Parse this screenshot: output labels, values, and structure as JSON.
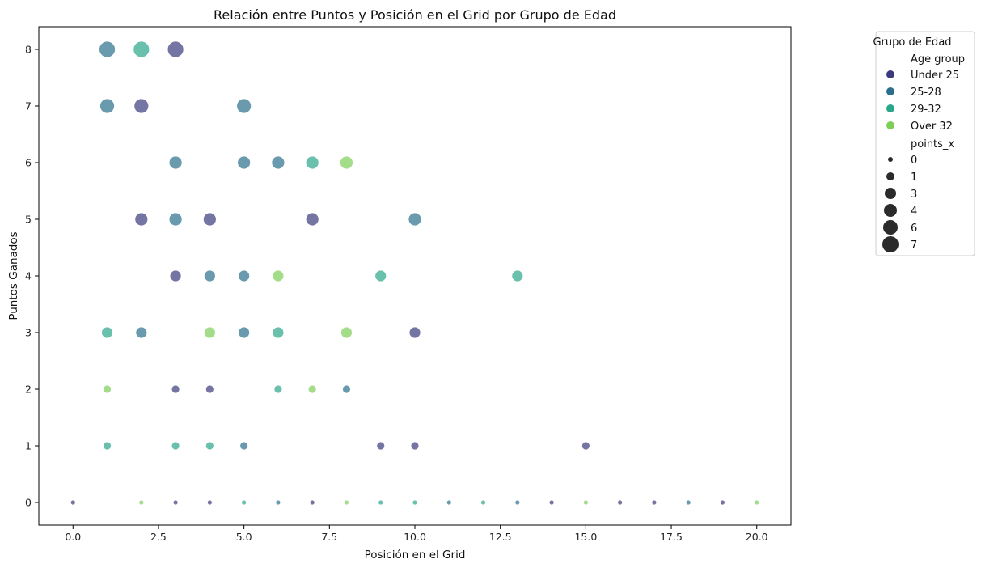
{
  "chart_data": {
    "type": "scatter",
    "title": "Relación entre Puntos y Posición en el Grid por Grupo de Edad",
    "xlabel": "Posición en el Grid",
    "ylabel": "Puntos Ganados",
    "xlim": [
      -1,
      21
    ],
    "ylim": [
      -0.4,
      8.4
    ],
    "x_ticks": [
      0,
      2.5,
      5,
      7.5,
      10,
      12.5,
      15,
      17.5,
      20
    ],
    "x_tick_labels": [
      "0.0",
      "2.5",
      "5.0",
      "7.5",
      "10.0",
      "12.5",
      "15.0",
      "17.5",
      "20.0"
    ],
    "y_ticks": [
      0,
      1,
      2,
      3,
      4,
      5,
      6,
      7,
      8
    ],
    "y_tick_labels": [
      "0",
      "1",
      "2",
      "3",
      "4",
      "5",
      "6",
      "7",
      "8"
    ],
    "grid": false,
    "colors": {
      "Under 25": "#3b3a7e",
      "25-28": "#2a6f8c",
      "29-32": "#2aa78a",
      "Over 32": "#7ccf58"
    },
    "series": [
      {
        "name": "Under 25",
        "points": [
          {
            "x": 2,
            "y": 7,
            "size": 6
          },
          {
            "x": 3,
            "y": 8,
            "size": 7
          },
          {
            "x": 2,
            "y": 5,
            "size": 4
          },
          {
            "x": 4,
            "y": 5,
            "size": 4
          },
          {
            "x": 7,
            "y": 5,
            "size": 4
          },
          {
            "x": 3,
            "y": 4,
            "size": 3
          },
          {
            "x": 10,
            "y": 3,
            "size": 3
          },
          {
            "x": 3,
            "y": 2,
            "size": 1
          },
          {
            "x": 4,
            "y": 2,
            "size": 1
          },
          {
            "x": 9,
            "y": 1,
            "size": 1
          },
          {
            "x": 10,
            "y": 1,
            "size": 1
          },
          {
            "x": 15,
            "y": 1,
            "size": 1
          },
          {
            "x": 0,
            "y": 0,
            "size": 0
          },
          {
            "x": 3,
            "y": 0,
            "size": 0
          },
          {
            "x": 4,
            "y": 0,
            "size": 0
          },
          {
            "x": 7,
            "y": 0,
            "size": 0
          },
          {
            "x": 14,
            "y": 0,
            "size": 0
          },
          {
            "x": 16,
            "y": 0,
            "size": 0
          },
          {
            "x": 17,
            "y": 0,
            "size": 0
          },
          {
            "x": 19,
            "y": 0,
            "size": 0
          }
        ]
      },
      {
        "name": "25-28",
        "points": [
          {
            "x": 1,
            "y": 8,
            "size": 7
          },
          {
            "x": 1,
            "y": 7,
            "size": 6
          },
          {
            "x": 5,
            "y": 7,
            "size": 6
          },
          {
            "x": 3,
            "y": 6,
            "size": 4
          },
          {
            "x": 5,
            "y": 6,
            "size": 4
          },
          {
            "x": 6,
            "y": 6,
            "size": 4
          },
          {
            "x": 3,
            "y": 5,
            "size": 4
          },
          {
            "x": 10,
            "y": 5,
            "size": 4
          },
          {
            "x": 4,
            "y": 4,
            "size": 3
          },
          {
            "x": 5,
            "y": 4,
            "size": 3
          },
          {
            "x": 2,
            "y": 3,
            "size": 3
          },
          {
            "x": 5,
            "y": 3,
            "size": 3
          },
          {
            "x": 8,
            "y": 2,
            "size": 1
          },
          {
            "x": 5,
            "y": 1,
            "size": 1
          },
          {
            "x": 6,
            "y": 0,
            "size": 0
          },
          {
            "x": 11,
            "y": 0,
            "size": 0
          },
          {
            "x": 13,
            "y": 0,
            "size": 0
          },
          {
            "x": 18,
            "y": 0,
            "size": 0
          }
        ]
      },
      {
        "name": "29-32",
        "points": [
          {
            "x": 2,
            "y": 8,
            "size": 7
          },
          {
            "x": 7,
            "y": 6,
            "size": 4
          },
          {
            "x": 9,
            "y": 4,
            "size": 3
          },
          {
            "x": 13,
            "y": 4,
            "size": 3
          },
          {
            "x": 1,
            "y": 3,
            "size": 3
          },
          {
            "x": 6,
            "y": 3,
            "size": 3
          },
          {
            "x": 6,
            "y": 2,
            "size": 1
          },
          {
            "x": 1,
            "y": 1,
            "size": 1
          },
          {
            "x": 3,
            "y": 1,
            "size": 1
          },
          {
            "x": 4,
            "y": 1,
            "size": 1
          },
          {
            "x": 5,
            "y": 0,
            "size": 0
          },
          {
            "x": 9,
            "y": 0,
            "size": 0
          },
          {
            "x": 10,
            "y": 0,
            "size": 0
          },
          {
            "x": 12,
            "y": 0,
            "size": 0
          }
        ]
      },
      {
        "name": "Over 32",
        "points": [
          {
            "x": 8,
            "y": 6,
            "size": 4
          },
          {
            "x": 6,
            "y": 4,
            "size": 3
          },
          {
            "x": 4,
            "y": 3,
            "size": 3
          },
          {
            "x": 8,
            "y": 3,
            "size": 3
          },
          {
            "x": 1,
            "y": 2,
            "size": 1
          },
          {
            "x": 7,
            "y": 2,
            "size": 1
          },
          {
            "x": 2,
            "y": 0,
            "size": 0
          },
          {
            "x": 8,
            "y": 0,
            "size": 0
          },
          {
            "x": 15,
            "y": 0,
            "size": 0
          },
          {
            "x": 20,
            "y": 0,
            "size": 0
          }
        ]
      }
    ],
    "legend": {
      "title": "Grupo de Edad",
      "placement": "outside-right-top",
      "hue_title": "Age group",
      "hue_items": [
        "Under 25",
        "25-28",
        "29-32",
        "Over 32"
      ],
      "size_title": "points_x",
      "size_items": [
        "0",
        "1",
        "3",
        "4",
        "6",
        "7"
      ]
    }
  }
}
